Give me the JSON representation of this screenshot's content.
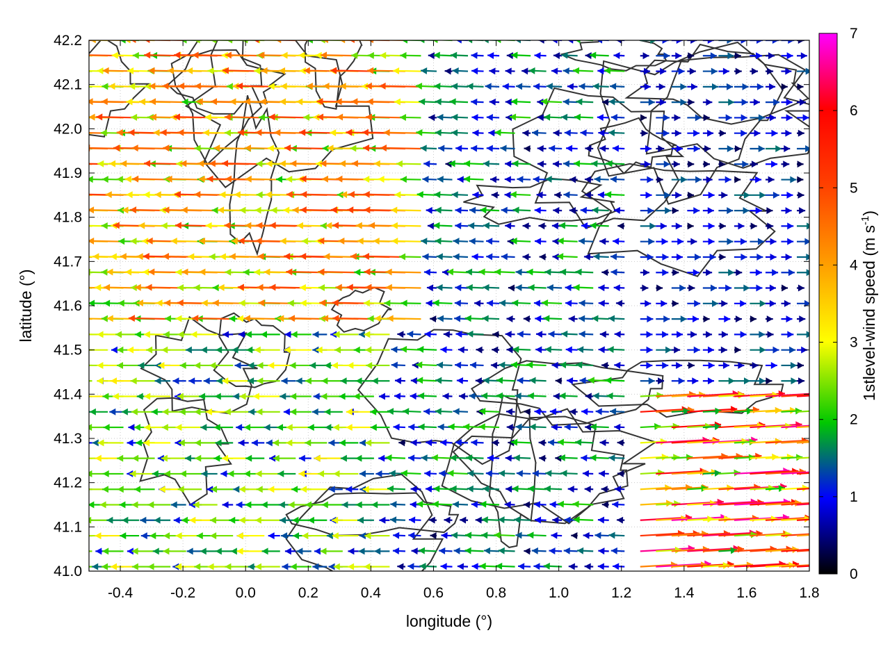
{
  "chart_data": {
    "type": "vector-field",
    "xlabel": "longitude (°)",
    "ylabel": "latitude (°)",
    "colorbar_label": "1stlevel-wind speed (m s",
    "colorbar_label_sup": "-1",
    "colorbar_label_end": ")",
    "xlim": [
      -0.5,
      1.8
    ],
    "ylim": [
      41.0,
      42.2
    ],
    "x_ticks": [
      "-0.4",
      "-0.2",
      "0.0",
      "0.2",
      "0.4",
      "0.6",
      "0.8",
      "1.0",
      "1.2",
      "1.4",
      "1.6",
      "1.8"
    ],
    "y_ticks": [
      "41.0",
      "41.1",
      "41.2",
      "41.3",
      "41.4",
      "41.5",
      "41.6",
      "41.7",
      "41.8",
      "41.9",
      "42.0",
      "42.1",
      "42.2"
    ],
    "colorbar_ticks": [
      "0",
      "1",
      "2",
      "3",
      "4",
      "5",
      "6",
      "7"
    ],
    "colorbar_range": [
      0,
      7
    ],
    "grid": true,
    "palette": [
      "#000000",
      "#0000ff",
      "#00c800",
      "#ffff00",
      "#ffa000",
      "#ff0000",
      "#ff00ff"
    ],
    "wind_regions": [
      {
        "lon": [
          -0.5,
          0.6
        ],
        "lat": [
          41.55,
          42.2
        ],
        "u": -2.6,
        "v": 0.05,
        "speed_range": [
          2.0,
          5.2
        ]
      },
      {
        "lon": [
          -0.5,
          0.5
        ],
        "lat": [
          41.0,
          41.55
        ],
        "u": -1.8,
        "v": 0.0,
        "speed_range": [
          0.8,
          3.2
        ]
      },
      {
        "lon": [
          0.5,
          1.25
        ],
        "lat": [
          41.0,
          42.2
        ],
        "u": -1.2,
        "v": 0.05,
        "speed_range": [
          0.3,
          2.2
        ]
      },
      {
        "lon": [
          1.25,
          1.8
        ],
        "lat": [
          41.4,
          42.2
        ],
        "u": 1.0,
        "v": 0.0,
        "speed_range": [
          0.3,
          1.6
        ]
      },
      {
        "lon": [
          1.25,
          1.8
        ],
        "lat": [
          41.0,
          41.4
        ],
        "u": 2.6,
        "v": 0.15,
        "speed_range": [
          1.8,
          6.8
        ]
      }
    ],
    "contour_levels": 3
  }
}
